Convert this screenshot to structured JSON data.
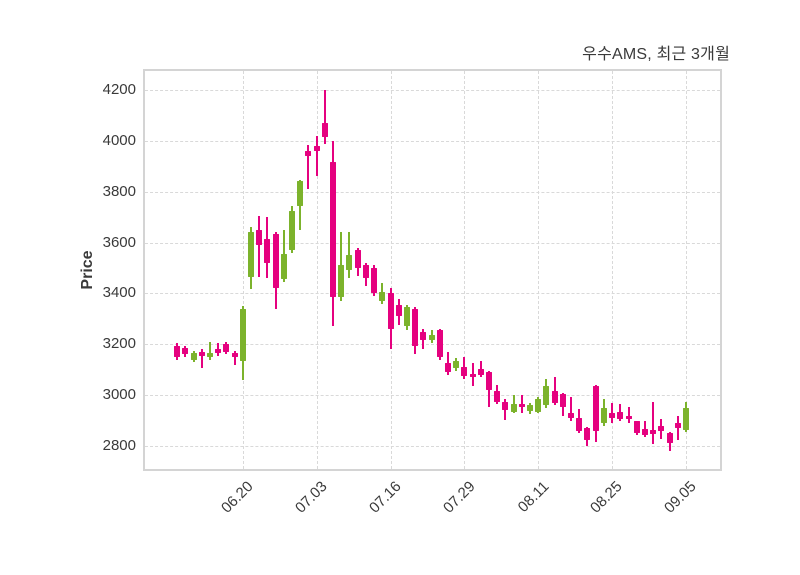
{
  "header": {
    "title": "우수AMS, 최근 3개월"
  },
  "chart_data": {
    "type": "candlestick",
    "title": "우수AMS, 최근 3개월",
    "ylabel": "Price",
    "ylim": [
      2710,
      4274
    ],
    "yticks": [
      2800,
      3000,
      3200,
      3400,
      3600,
      3800,
      4000,
      4200
    ],
    "xtick_labels": [
      "06.20",
      "07.03",
      "07.16",
      "07.29",
      "08.11",
      "08.25",
      "09.05"
    ],
    "xtick_indices": [
      8,
      17,
      26,
      35,
      44,
      53,
      62
    ],
    "grid": true,
    "legend": false,
    "colors": {
      "up": "#7cb32c",
      "down": "#e5017f",
      "grid": "#d9d9d9",
      "spine": "#d4d4d4",
      "text": "#3a3a3a"
    },
    "candles_format": [
      "open",
      "high",
      "low",
      "close"
    ],
    "candles": [
      [
        3195,
        3205,
        3140,
        3150
      ],
      [
        3185,
        3195,
        3150,
        3160
      ],
      [
        3140,
        3175,
        3130,
        3165
      ],
      [
        3170,
        3180,
        3105,
        3155
      ],
      [
        3150,
        3210,
        3140,
        3165
      ],
      [
        3180,
        3205,
        3155,
        3165
      ],
      [
        3200,
        3210,
        3160,
        3170
      ],
      [
        3165,
        3175,
        3120,
        3150
      ],
      [
        3135,
        3350,
        3060,
        3340
      ],
      [
        3465,
        3660,
        3415,
        3640
      ],
      [
        3650,
        3705,
        3465,
        3590
      ],
      [
        3615,
        3700,
        3460,
        3520
      ],
      [
        3635,
        3640,
        3340,
        3420
      ],
      [
        3455,
        3650,
        3445,
        3555
      ],
      [
        3570,
        3745,
        3560,
        3725
      ],
      [
        3745,
        3845,
        3650,
        3840
      ],
      [
        3960,
        3985,
        3810,
        3940
      ],
      [
        3980,
        4020,
        3860,
        3960
      ],
      [
        4070,
        4200,
        3985,
        4015
      ],
      [
        3915,
        4000,
        3270,
        3385
      ],
      [
        3385,
        3640,
        3370,
        3510
      ],
      [
        3490,
        3640,
        3460,
        3550
      ],
      [
        3570,
        3580,
        3470,
        3500
      ],
      [
        3510,
        3520,
        3430,
        3460
      ],
      [
        3500,
        3510,
        3390,
        3400
      ],
      [
        3370,
        3440,
        3360,
        3405
      ],
      [
        3400,
        3420,
        3180,
        3260
      ],
      [
        3355,
        3380,
        3275,
        3310
      ],
      [
        3270,
        3355,
        3255,
        3345
      ],
      [
        3340,
        3345,
        3160,
        3195
      ],
      [
        3250,
        3260,
        3180,
        3215
      ],
      [
        3215,
        3255,
        3205,
        3235
      ],
      [
        3255,
        3260,
        3140,
        3150
      ],
      [
        3125,
        3170,
        3080,
        3090
      ],
      [
        3105,
        3145,
        3095,
        3135
      ],
      [
        3110,
        3150,
        3065,
        3075
      ],
      [
        3085,
        3125,
        3035,
        3070
      ],
      [
        3105,
        3135,
        3070,
        3080
      ],
      [
        3090,
        3095,
        2955,
        3020
      ],
      [
        3015,
        3040,
        2965,
        2975
      ],
      [
        2975,
        2985,
        2903,
        2940
      ],
      [
        2935,
        3000,
        2930,
        2965
      ],
      [
        2967,
        3000,
        2930,
        2955
      ],
      [
        2936,
        2970,
        2925,
        2960
      ],
      [
        2935,
        2995,
        2930,
        2985
      ],
      [
        2960,
        3065,
        2950,
        3035
      ],
      [
        3015,
        3070,
        2960,
        2970
      ],
      [
        3005,
        3010,
        2920,
        2955
      ],
      [
        2930,
        2995,
        2900,
        2910
      ],
      [
        2910,
        2945,
        2850,
        2860
      ],
      [
        2870,
        2875,
        2800,
        2825
      ],
      [
        3035,
        3040,
        2815,
        2860
      ],
      [
        2890,
        2985,
        2880,
        2950
      ],
      [
        2930,
        2968,
        2890,
        2910
      ],
      [
        2936,
        2967,
        2900,
        2905
      ],
      [
        2917,
        2953,
        2890,
        2905
      ],
      [
        2897,
        2900,
        2845,
        2850
      ],
      [
        2866,
        2897,
        2835,
        2842
      ],
      [
        2862,
        2972,
        2808,
        2846
      ],
      [
        2878,
        2905,
        2827,
        2858
      ],
      [
        2850,
        2855,
        2780,
        2812
      ],
      [
        2889,
        2920,
        2823,
        2870
      ],
      [
        2862,
        2975,
        2855,
        2950
      ]
    ]
  }
}
